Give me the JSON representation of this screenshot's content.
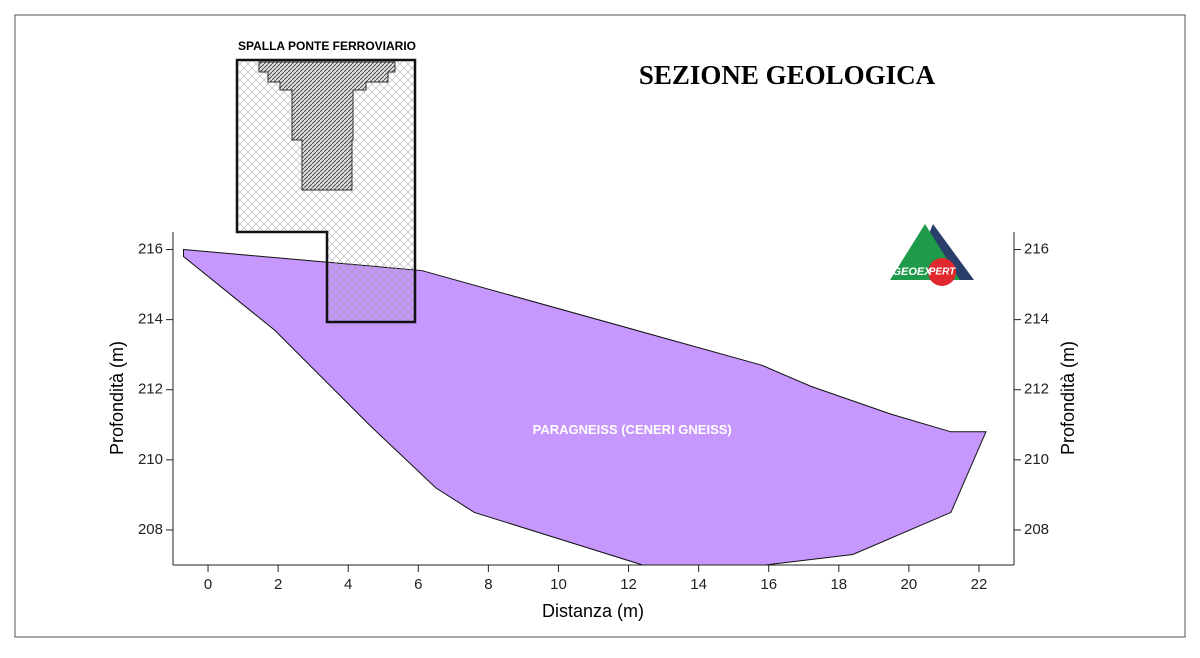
{
  "chart_data": {
    "type": "section",
    "title": "SEZIONE GEOLOGICA",
    "x_label": "Distanza (m)",
    "y_label": "Profondità (m)",
    "structure_label": "SPALLA PONTE FERROVIARIO",
    "logo": {
      "left": "GEOEX",
      "right": "PERT"
    },
    "xlim": [
      -1,
      23
    ],
    "ylim": [
      207,
      216.5
    ],
    "xticks": [
      0,
      2,
      4,
      6,
      8,
      10,
      12,
      14,
      16,
      18,
      20,
      22
    ],
    "yticks": [
      208,
      210,
      212,
      214,
      216
    ],
    "series": [
      {
        "name": "PARAGNEISS (CENERI GNEISS)",
        "color": "#c697fc",
        "x": [
          -0.7,
          6.1,
          15.8,
          17.2,
          19.5,
          21.2,
          22.2,
          21.2,
          18.4,
          15.9,
          12.4,
          7.6,
          6.5,
          4.6,
          1.9,
          -0.7
        ],
        "values": [
          216,
          215.4,
          212.7,
          212.1,
          211.3,
          210.8,
          210.8,
          208.5,
          207.3,
          207,
          207,
          208.5,
          209.2,
          211,
          213.7,
          215.8
        ]
      }
    ]
  }
}
